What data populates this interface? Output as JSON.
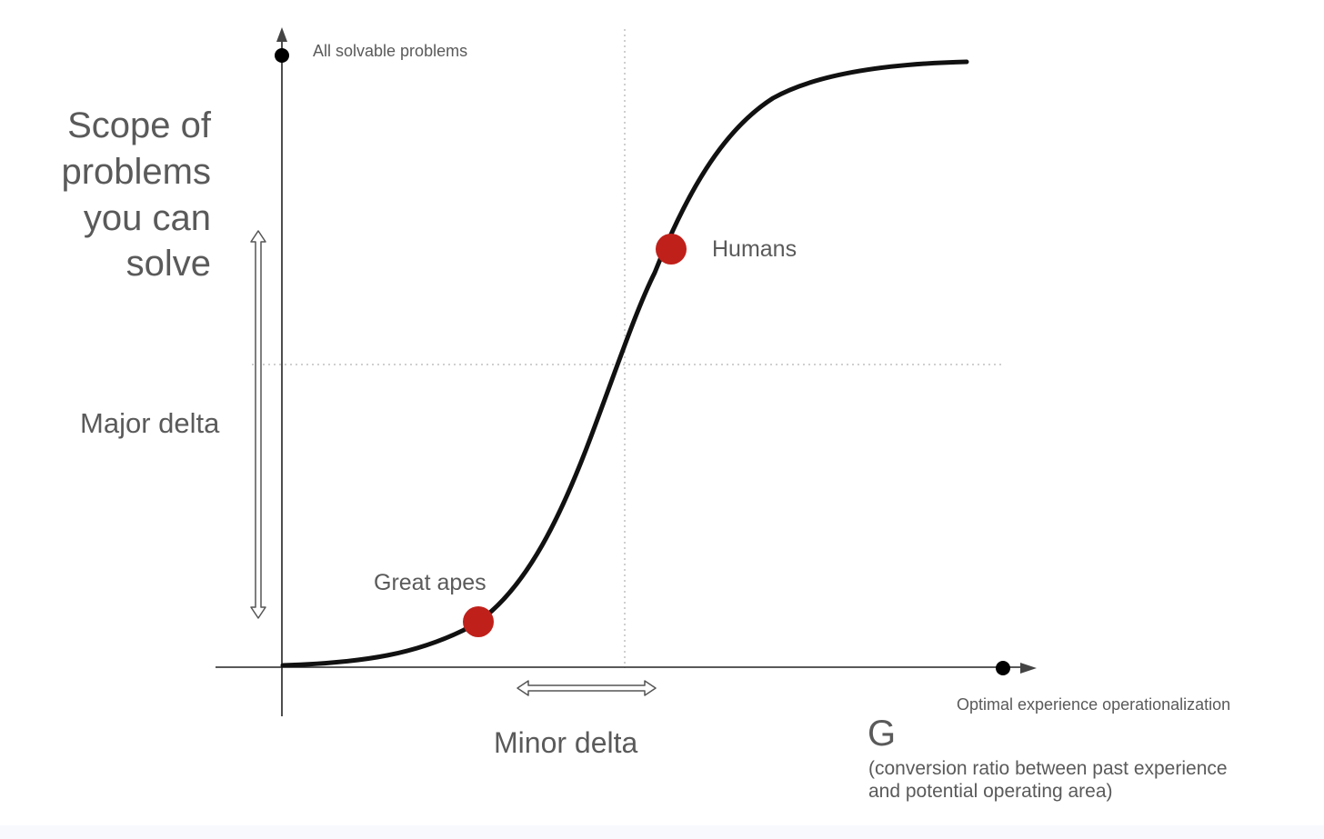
{
  "diagram": {
    "y_axis_label_lines": [
      "Scope of",
      "problems",
      "you can",
      "solve"
    ],
    "y_axis_top_label": "All solvable problems",
    "x_axis_end_label": "Optimal experience operationalization",
    "g_symbol": "G",
    "g_description_lines": [
      "(conversion ratio between past experience",
      "and potential operating area)"
    ],
    "major_delta_label": "Major delta",
    "minor_delta_label": "Minor delta",
    "points": [
      {
        "label": "Great apes",
        "color": "#c0201a"
      },
      {
        "label": "Humans",
        "color": "#c0201a"
      }
    ],
    "curve_color": "#111111",
    "axis_color": "#222222",
    "grid_color": "#cfcfcf"
  }
}
